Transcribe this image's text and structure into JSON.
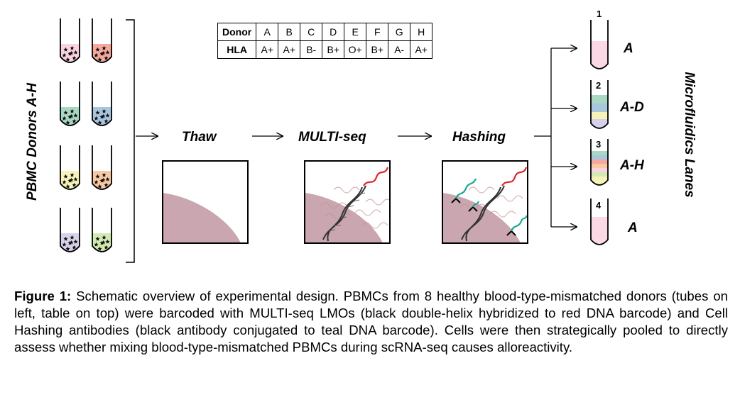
{
  "figure": {
    "left_label": "PBMC Donors A-H",
    "right_label": "Microfluidics Lanes",
    "steps": [
      "Thaw",
      "MULTI-seq",
      "Hashing"
    ],
    "table": {
      "header_row": "Donor",
      "second_row": "HLA",
      "donors": [
        "A",
        "B",
        "C",
        "D",
        "E",
        "F",
        "G",
        "H"
      ],
      "hla": [
        "A+",
        "A+",
        "B-",
        "B+",
        "O+",
        "B+",
        "A-",
        "A+"
      ]
    },
    "tube_colors": [
      "#f9d3e0",
      "#f6a89c",
      "#a8d8c2",
      "#a9c6df",
      "#f6f2b8",
      "#f8c9a2",
      "#d7d0ea",
      "#d2eab1"
    ],
    "lanes": [
      {
        "number": "1",
        "label": "A"
      },
      {
        "number": "2",
        "label": "A-D"
      },
      {
        "number": "3",
        "label": "A-H"
      },
      {
        "number": "4",
        "label": "A"
      }
    ],
    "colors": {
      "membrane": "#c9a6b0",
      "barcode_red": "#e0262a",
      "barcode_teal": "#1aa88f"
    }
  },
  "caption": {
    "label": "Figure 1:",
    "text": " Schematic overview of experimental design. PBMCs from 8 healthy blood-type-mismatched donors (tubes on left, table on top) were barcoded with MULTI-seq LMOs (black double-helix hybridized to red DNA barcode) and Cell Hashing antibodies (black antibody conjugated to teal DNA barcode). Cells were then strategically pooled to directly assess whether mixing blood-type-mismatched PBMCs during scRNA-seq causes alloreactivity."
  }
}
